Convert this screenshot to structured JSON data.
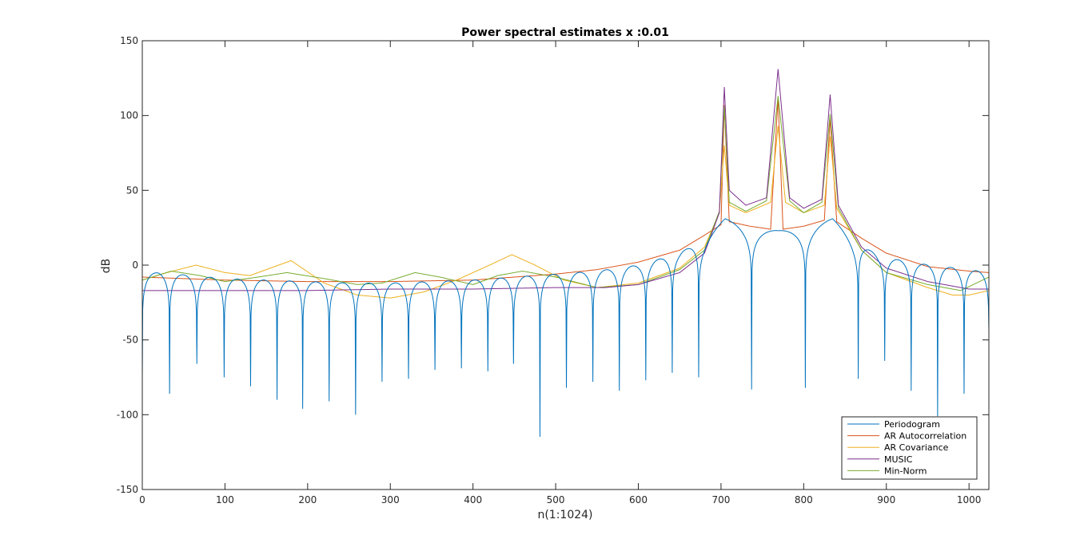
{
  "chart_data": {
    "type": "line",
    "title": "Power spectral estimates x :0.01",
    "xlabel": "n(1:1024)",
    "ylabel": "dB",
    "xlim": [
      0,
      1024
    ],
    "ylim": [
      -150,
      150
    ],
    "xticks": [
      0,
      100,
      200,
      300,
      400,
      500,
      600,
      700,
      800,
      900,
      1000
    ],
    "yticks": [
      -150,
      -100,
      -50,
      0,
      50,
      100,
      150
    ],
    "xtick_labels": [
      "0",
      "100",
      "200",
      "300",
      "400",
      "500",
      "600",
      "700",
      "800",
      "900",
      "1000"
    ],
    "ytick_labels": [
      "-150",
      "-100",
      "-50",
      "0",
      "50",
      "100",
      "150"
    ],
    "grid": false,
    "legend_position": "bottom-right",
    "peaks": [
      {
        "n": 704,
        "music": 119,
        "min_norm": 106,
        "ar_cov": 80,
        "ar_auto": 107
      },
      {
        "n": 769,
        "music": 131,
        "min_norm": 113,
        "ar_cov": 93,
        "ar_auto": 112
      },
      {
        "n": 832,
        "music": 114,
        "min_norm": 101,
        "ar_cov": 86,
        "ar_auto": 98
      }
    ],
    "periodogram_main_lobes": [
      {
        "n": 705,
        "value": 31
      },
      {
        "n": 770,
        "value": 23
      },
      {
        "n": 835,
        "value": 31
      }
    ],
    "periodogram_deep_nulls": [
      {
        "n": 481,
        "value": -131
      },
      {
        "n": 962,
        "value": -101
      },
      {
        "n": 258,
        "value": -100
      }
    ],
    "series": [
      {
        "name": "Periodogram",
        "color": "#0072bd",
        "envelope": [
          [
            0,
            -6
          ],
          [
            20,
            -5
          ],
          [
            60,
            -7
          ],
          [
            100,
            -9
          ],
          [
            150,
            -10
          ],
          [
            200,
            -11
          ],
          [
            250,
            -12
          ],
          [
            300,
            -12
          ],
          [
            350,
            -11
          ],
          [
            400,
            -10
          ],
          [
            450,
            -8
          ],
          [
            500,
            -6
          ],
          [
            550,
            -4
          ],
          [
            600,
            0
          ],
          [
            650,
            8
          ],
          [
            680,
            18
          ],
          [
            705,
            31
          ],
          [
            735,
            25
          ],
          [
            770,
            23
          ],
          [
            805,
            25
          ],
          [
            835,
            31
          ],
          [
            860,
            18
          ],
          [
            890,
            6
          ],
          [
            940,
            1
          ],
          [
            1000,
            -3
          ],
          [
            1024,
            -5
          ]
        ]
      },
      {
        "name": "AR Autocorrelation",
        "color": "#d95319",
        "values": [
          [
            0,
            -8
          ],
          [
            100,
            -10
          ],
          [
            200,
            -11
          ],
          [
            300,
            -11
          ],
          [
            400,
            -10
          ],
          [
            500,
            -6
          ],
          [
            550,
            -3
          ],
          [
            600,
            2
          ],
          [
            650,
            10
          ],
          [
            680,
            20
          ],
          [
            700,
            27
          ],
          [
            704,
            107
          ],
          [
            710,
            29
          ],
          [
            735,
            26
          ],
          [
            760,
            24
          ],
          [
            769,
            112
          ],
          [
            775,
            24
          ],
          [
            800,
            26
          ],
          [
            825,
            30
          ],
          [
            832,
            98
          ],
          [
            840,
            29
          ],
          [
            870,
            18
          ],
          [
            900,
            8
          ],
          [
            950,
            -1
          ],
          [
            1000,
            -4
          ],
          [
            1024,
            -5
          ]
        ]
      },
      {
        "name": "AR Covariance",
        "color": "#edb120",
        "values": [
          [
            0,
            -10
          ],
          [
            30,
            -5
          ],
          [
            65,
            0
          ],
          [
            100,
            -5
          ],
          [
            130,
            -7
          ],
          [
            180,
            3
          ],
          [
            220,
            -12
          ],
          [
            260,
            -20
          ],
          [
            300,
            -22
          ],
          [
            340,
            -18
          ],
          [
            380,
            -10
          ],
          [
            420,
            0
          ],
          [
            447,
            7
          ],
          [
            475,
            0
          ],
          [
            510,
            -10
          ],
          [
            550,
            -15
          ],
          [
            600,
            -12
          ],
          [
            650,
            -2
          ],
          [
            680,
            12
          ],
          [
            698,
            35
          ],
          [
            704,
            80
          ],
          [
            710,
            40
          ],
          [
            730,
            35
          ],
          [
            760,
            42
          ],
          [
            769,
            93
          ],
          [
            778,
            42
          ],
          [
            800,
            35
          ],
          [
            825,
            40
          ],
          [
            832,
            86
          ],
          [
            840,
            38
          ],
          [
            870,
            10
          ],
          [
            900,
            -5
          ],
          [
            950,
            -15
          ],
          [
            980,
            -20
          ],
          [
            1000,
            -20
          ],
          [
            1024,
            -17
          ]
        ]
      },
      {
        "name": "MUSIC",
        "color": "#7e2f8e",
        "values": [
          [
            0,
            -17
          ],
          [
            100,
            -17
          ],
          [
            200,
            -17
          ],
          [
            300,
            -16
          ],
          [
            400,
            -16
          ],
          [
            500,
            -15
          ],
          [
            560,
            -15
          ],
          [
            600,
            -13
          ],
          [
            650,
            -5
          ],
          [
            680,
            8
          ],
          [
            698,
            35
          ],
          [
            704,
            119
          ],
          [
            710,
            50
          ],
          [
            730,
            40
          ],
          [
            755,
            45
          ],
          [
            769,
            131
          ],
          [
            783,
            45
          ],
          [
            800,
            38
          ],
          [
            822,
            44
          ],
          [
            832,
            114
          ],
          [
            842,
            40
          ],
          [
            870,
            12
          ],
          [
            900,
            -2
          ],
          [
            950,
            -11
          ],
          [
            1000,
            -16
          ],
          [
            1024,
            -16
          ]
        ]
      },
      {
        "name": "Min-Norm",
        "color": "#77ac30",
        "values": [
          [
            0,
            -10
          ],
          [
            35,
            -4
          ],
          [
            70,
            -7
          ],
          [
            100,
            -11
          ],
          [
            140,
            -8
          ],
          [
            175,
            -5
          ],
          [
            220,
            -9
          ],
          [
            260,
            -13
          ],
          [
            290,
            -12
          ],
          [
            330,
            -5
          ],
          [
            360,
            -8
          ],
          [
            400,
            -13
          ],
          [
            430,
            -7
          ],
          [
            460,
            -4
          ],
          [
            500,
            -8
          ],
          [
            550,
            -15
          ],
          [
            600,
            -13
          ],
          [
            650,
            -3
          ],
          [
            680,
            10
          ],
          [
            698,
            36
          ],
          [
            704,
            106
          ],
          [
            710,
            42
          ],
          [
            730,
            36
          ],
          [
            755,
            43
          ],
          [
            769,
            113
          ],
          [
            783,
            43
          ],
          [
            800,
            35
          ],
          [
            822,
            42
          ],
          [
            832,
            101
          ],
          [
            842,
            38
          ],
          [
            870,
            10
          ],
          [
            900,
            -5
          ],
          [
            950,
            -13
          ],
          [
            990,
            -17
          ],
          [
            1024,
            -8
          ]
        ]
      }
    ]
  }
}
